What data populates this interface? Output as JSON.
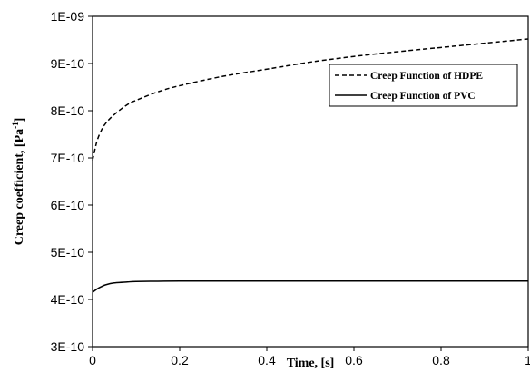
{
  "chart_data": {
    "type": "line",
    "title": "",
    "xlabel": "Time, [s]",
    "ylabel": "Creep coefficient, [Pa",
    "ylabel_superscript": "-1",
    "ylabel_suffix": "]",
    "xlim": [
      0,
      1
    ],
    "ylim": [
      3e-10,
      1e-09
    ],
    "x_ticks": [
      0,
      0.2,
      0.4,
      0.6,
      0.8,
      1
    ],
    "x_tick_labels": [
      "0",
      "0.2",
      "0.4",
      "0.6",
      "0.8",
      "1"
    ],
    "y_ticks": [
      3e-10,
      4e-10,
      5e-10,
      6e-10,
      7e-10,
      8e-10,
      9e-10,
      1e-09
    ],
    "y_tick_labels": [
      "3E-10",
      "4E-10",
      "5E-10",
      "6E-10",
      "7E-10",
      "8E-10",
      "9E-10",
      "1E-09"
    ],
    "grid": false,
    "legend_position": "top-right",
    "series": [
      {
        "name": "Creep Function of HDPE",
        "style": "dashed",
        "color": "#000000",
        "x": [
          0,
          0.01,
          0.02,
          0.03,
          0.05,
          0.08,
          0.1,
          0.15,
          0.2,
          0.3,
          0.4,
          0.5,
          0.6,
          0.7,
          0.8,
          0.9,
          1.0
        ],
        "y": [
          6.95e-10,
          7.35e-10,
          7.58e-10,
          7.73e-10,
          7.92e-10,
          8.13e-10,
          8.22e-10,
          8.4e-10,
          8.53e-10,
          8.73e-10,
          8.88e-10,
          9.03e-10,
          9.15e-10,
          9.25e-10,
          9.34e-10,
          9.43e-10,
          9.52e-10
        ]
      },
      {
        "name": "Creep Function of PVC",
        "style": "solid",
        "color": "#000000",
        "x": [
          0,
          0.01,
          0.02,
          0.03,
          0.05,
          0.08,
          0.1,
          0.15,
          0.2,
          0.3,
          0.5,
          0.7,
          1.0
        ],
        "y": [
          4.15e-10,
          4.22e-10,
          4.27e-10,
          4.31e-10,
          4.35e-10,
          4.37e-10,
          4.38e-10,
          4.385e-10,
          4.39e-10,
          4.39e-10,
          4.39e-10,
          4.39e-10,
          4.39e-10
        ]
      }
    ]
  }
}
